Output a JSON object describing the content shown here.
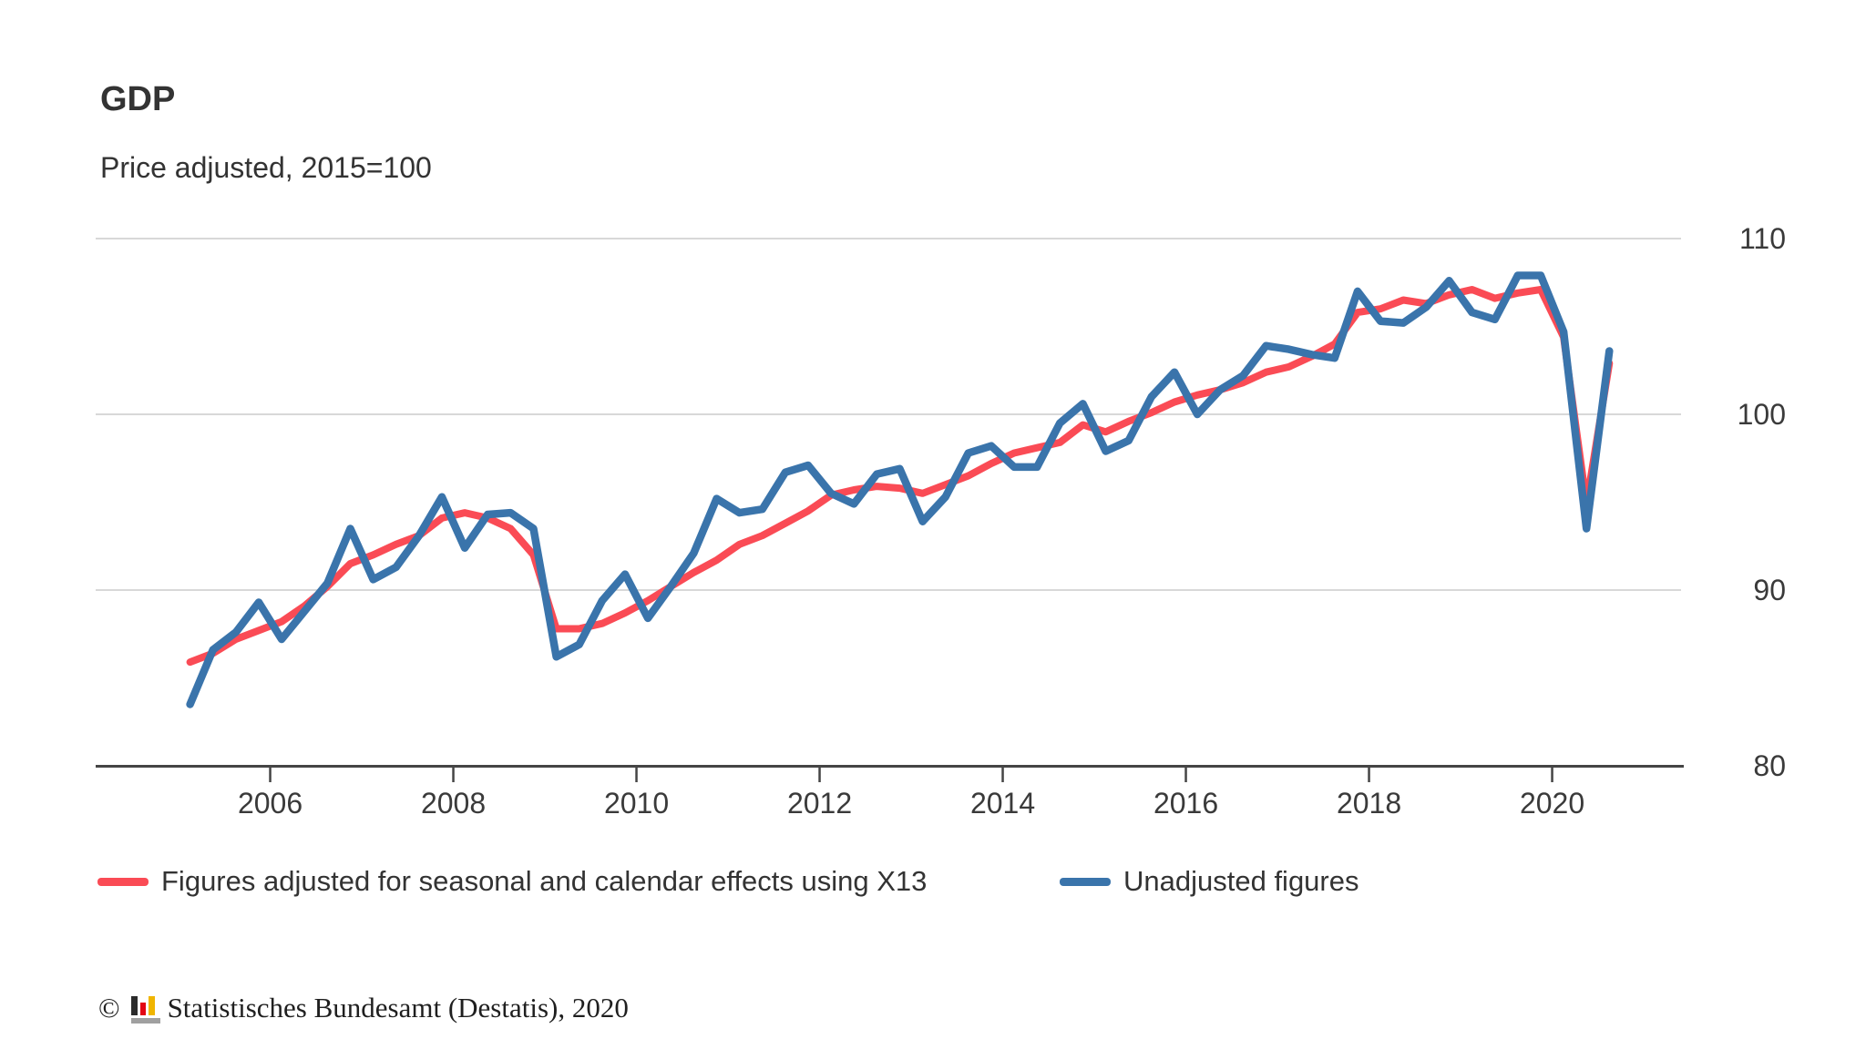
{
  "header": {
    "title": "GDP",
    "subtitle": "Price adjusted, 2015=100"
  },
  "legend": {
    "items": [
      {
        "label": "Figures adjusted for seasonal and calendar effects using X13",
        "color": "#fa4b55"
      },
      {
        "label": "Unadjusted figures",
        "color": "#3a74ab"
      }
    ]
  },
  "footer": {
    "copyright": "©",
    "source": "Statistisches Bundesamt (Destatis), 2020",
    "logo_icon": "destatis-bar-chart-logo",
    "logo_colors": {
      "black": "#2b2b2b",
      "red": "#e30613",
      "yellow": "#f0b500",
      "gray": "#a0a0a0"
    }
  },
  "chart_data": {
    "type": "line",
    "title": "GDP",
    "subtitle": "Price adjusted, 2015=100",
    "frequency": "quarterly",
    "x_range": {
      "start": "2005-Q1",
      "end": "2020-Q3"
    },
    "x_tick_years": [
      2006,
      2008,
      2010,
      2012,
      2014,
      2016,
      2018,
      2020
    ],
    "y_ticks": [
      80,
      90,
      100,
      110
    ],
    "ylim": [
      80,
      111.5
    ],
    "grid": "horizontal",
    "legend_position": "bottom",
    "colors": {
      "grid": "#d8d8d8",
      "axis": "#454545",
      "tick_text": "#3a3a3a"
    },
    "series": [
      {
        "name": "Figures adjusted for seasonal and calendar effects using X13",
        "color": "#fa4b55",
        "stroke_width": 8,
        "values": [
          85.9,
          86.4,
          87.2,
          87.7,
          88.2,
          89.1,
          90.2,
          91.5,
          92.0,
          92.6,
          93.1,
          94.1,
          94.4,
          94.1,
          93.5,
          92.0,
          87.8,
          87.8,
          88.1,
          88.7,
          89.4,
          90.2,
          91.0,
          91.7,
          92.6,
          93.1,
          93.8,
          94.5,
          95.4,
          95.7,
          95.9,
          95.8,
          95.5,
          96.0,
          96.5,
          97.2,
          97.8,
          98.1,
          98.4,
          99.4,
          99.0,
          99.6,
          100.1,
          100.7,
          101.1,
          101.4,
          101.8,
          102.4,
          102.7,
          103.3,
          104.0,
          105.8,
          106.0,
          106.5,
          106.3,
          106.8,
          107.1,
          106.6,
          106.9,
          107.1,
          104.4,
          94.9,
          102.9
        ]
      },
      {
        "name": "Unadjusted figures",
        "color": "#3a74ab",
        "stroke_width": 8.5,
        "values": [
          83.5,
          86.6,
          87.6,
          89.3,
          87.2,
          88.8,
          90.4,
          93.5,
          90.6,
          91.3,
          93.1,
          95.3,
          92.4,
          94.3,
          94.4,
          93.5,
          86.2,
          86.9,
          89.4,
          90.9,
          88.4,
          90.2,
          92.1,
          95.2,
          94.4,
          94.6,
          96.7,
          97.1,
          95.5,
          94.9,
          96.6,
          96.9,
          93.9,
          95.3,
          97.8,
          98.2,
          97.0,
          97.0,
          99.5,
          100.6,
          97.9,
          98.5,
          101.0,
          102.4,
          100.0,
          101.4,
          102.2,
          103.9,
          103.7,
          103.4,
          103.2,
          107.0,
          105.3,
          105.2,
          106.1,
          107.6,
          105.8,
          105.4,
          107.9,
          107.9,
          104.7,
          93.5,
          103.6
        ]
      }
    ]
  }
}
